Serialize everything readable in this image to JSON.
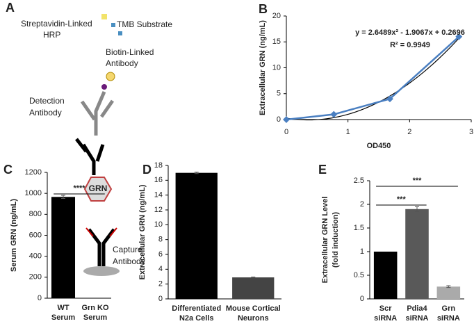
{
  "diagram": {
    "label": "A",
    "streptavidin": [
      "Streptavidin-Linked",
      "HRP"
    ],
    "tmb": "TMB Substrate",
    "biotin": [
      "Biotin-Linked",
      "Antibody"
    ],
    "detection": [
      "Detection",
      "Antibody"
    ],
    "grn": "GRN",
    "capture": [
      "Capture",
      "Antibody"
    ]
  },
  "chart_data": [
    {
      "type": "scatter",
      "label": "B",
      "xlabel": "OD450",
      "ylabel": "Extracellular GRN (ng/mL)",
      "x": [
        0,
        0.77,
        1.68,
        2.8
      ],
      "values": [
        0,
        1,
        4,
        16
      ],
      "color": "#4a7fc1",
      "trendline": {
        "coefficients": [
          2.6489,
          -1.9067,
          0.2696
        ],
        "color": "#000000"
      },
      "annotations": [
        "y = 2.6489x² - 1.9067x + 0.2696",
        "R² = 0.9949"
      ],
      "xlim": [
        0,
        3
      ],
      "ylim": [
        0,
        20
      ],
      "xticks": [
        0,
        1,
        2,
        3
      ],
      "yticks": [
        0,
        5,
        10,
        15,
        20
      ]
    },
    {
      "type": "bar",
      "label": "C",
      "ylabel": [
        "Serum GRN (ng/mL)"
      ],
      "categories": [
        [
          "WT",
          "Serum"
        ],
        [
          "Grn KO",
          "Serum"
        ]
      ],
      "values": [
        966,
        0
      ],
      "errors": [
        15,
        0
      ],
      "colors": [
        "#000000",
        "#000000"
      ],
      "ylim": [
        0,
        1200
      ],
      "yticks": [
        0,
        200,
        400,
        600,
        800,
        1000,
        1200
      ],
      "significance": [
        {
          "text": "****",
          "between": [
            0,
            1
          ]
        }
      ]
    },
    {
      "type": "bar",
      "label": "D",
      "ylabel": [
        "Extracellular GRN (ng/mL)"
      ],
      "categories": [
        [
          "Differentiated",
          "N2a Cells"
        ],
        [
          "Mouse Cortical",
          "Neurons"
        ]
      ],
      "values": [
        17,
        2.9
      ],
      "errors": [
        0.1,
        0.05
      ],
      "colors": [
        "#000000",
        "#444444"
      ],
      "ylim": [
        0,
        18
      ],
      "yticks": [
        0,
        2,
        4,
        6,
        8,
        10,
        12,
        14,
        16,
        18
      ],
      "significance": []
    },
    {
      "type": "bar",
      "label": "E",
      "ylabel": [
        "Extracellular GRN Level",
        "(fold induction)"
      ],
      "categories": [
        [
          "Scr",
          "siRNA"
        ],
        [
          "Pdia4",
          "siRNA"
        ],
        [
          "Grn",
          "siRNA"
        ]
      ],
      "values": [
        1,
        1.9,
        0.26
      ],
      "errors": [
        0,
        0.05,
        0.02
      ],
      "colors": [
        "#000000",
        "#595959",
        "#aaaaaa"
      ],
      "ylim": [
        0,
        2.5
      ],
      "yticks": [
        0,
        0.5,
        1,
        1.5,
        2,
        2.5
      ],
      "significance": [
        {
          "text": "***",
          "between": [
            0,
            1
          ]
        },
        {
          "text": "***",
          "between": [
            0,
            2
          ]
        }
      ]
    }
  ]
}
